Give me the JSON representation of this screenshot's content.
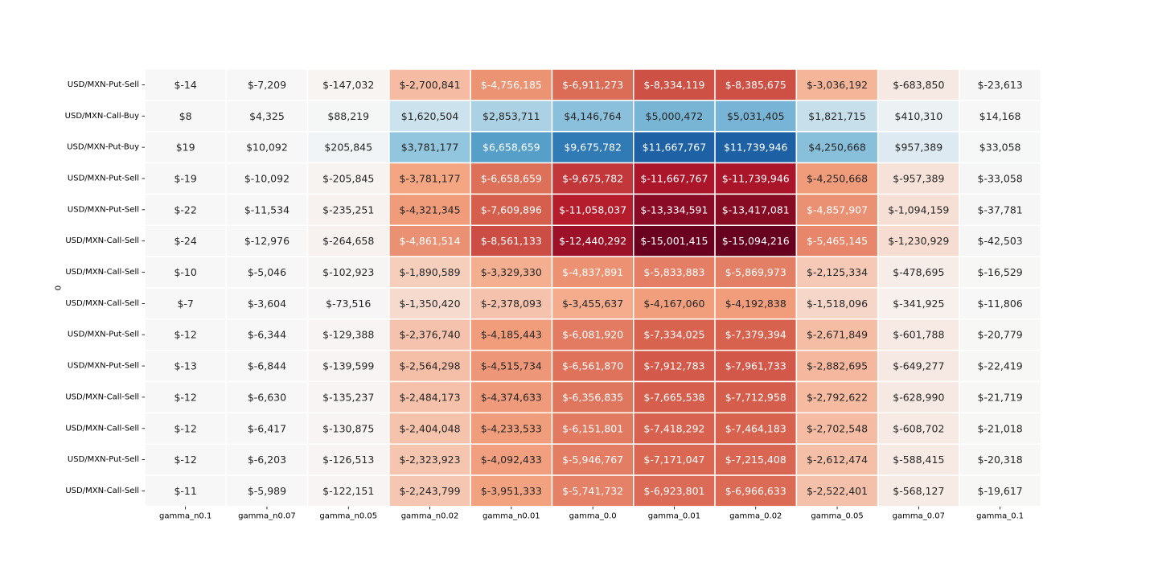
{
  "chart_data": {
    "type": "heatmap",
    "title": "",
    "xlabel": "",
    "ylabel": "0",
    "colormap": "RdBu",
    "color_range": [
      -15094216,
      15094216
    ],
    "columns": [
      "gamma_n0.1",
      "gamma_n0.07",
      "gamma_n0.05",
      "gamma_n0.02",
      "gamma_n0.01",
      "gamma_0.0",
      "gamma_0.01",
      "gamma_0.02",
      "gamma_0.05",
      "gamma_0.07",
      "gamma_0.1"
    ],
    "rows": [
      "USD/MXN-Put-Sell",
      "USD/MXN-Call-Buy",
      "USD/MXN-Put-Buy",
      "USD/MXN-Put-Sell",
      "USD/MXN-Put-Sell",
      "USD/MXN-Call-Sell",
      "USD/MXN-Call-Sell",
      "USD/MXN-Call-Sell",
      "USD/MXN-Put-Sell",
      "USD/MXN-Put-Sell",
      "USD/MXN-Call-Sell",
      "USD/MXN-Call-Sell",
      "USD/MXN-Put-Sell",
      "USD/MXN-Call-Sell"
    ],
    "values": [
      [
        -14,
        -7209,
        -147032,
        -2700841,
        -4756185,
        -6911273,
        -8334119,
        -8385675,
        -3036192,
        -683850,
        -23613
      ],
      [
        8,
        4325,
        88219,
        1620504,
        2853711,
        4146764,
        5000472,
        5031405,
        1821715,
        410310,
        14168
      ],
      [
        19,
        10092,
        205845,
        3781177,
        6658659,
        9675782,
        11667767,
        11739946,
        4250668,
        957389,
        33058
      ],
      [
        -19,
        -10092,
        -205845,
        -3781177,
        -6658659,
        -9675782,
        -11667767,
        -11739946,
        -4250668,
        -957389,
        -33058
      ],
      [
        -22,
        -11534,
        -235251,
        -4321345,
        -7609896,
        -11058037,
        -13334591,
        -13417081,
        -4857907,
        -1094159,
        -37781
      ],
      [
        -24,
        -12976,
        -264658,
        -4861514,
        -8561133,
        -12440292,
        -15001415,
        -15094216,
        -5465145,
        -1230929,
        -42503
      ],
      [
        -10,
        -5046,
        -102923,
        -1890589,
        -3329330,
        -4837891,
        -5833883,
        -5869973,
        -2125334,
        -478695,
        -16529
      ],
      [
        -7,
        -3604,
        -73516,
        -1350420,
        -2378093,
        -3455637,
        -4167060,
        -4192838,
        -1518096,
        -341925,
        -11806
      ],
      [
        -12,
        -6344,
        -129388,
        -2376740,
        -4185443,
        -6081920,
        -7334025,
        -7379394,
        -2671849,
        -601788,
        -20779
      ],
      [
        -13,
        -6844,
        -139599,
        -2564298,
        -4515734,
        -6561870,
        -7912783,
        -7961733,
        -2882695,
        -649277,
        -22419
      ],
      [
        -12,
        -6630,
        -135237,
        -2484173,
        -4374633,
        -6356835,
        -7665538,
        -7712958,
        -2792622,
        -628990,
        -21719
      ],
      [
        -12,
        -6417,
        -130875,
        -2404048,
        -4233533,
        -6151801,
        -7418292,
        -7464183,
        -2702548,
        -608702,
        -21018
      ],
      [
        -12,
        -6203,
        -126513,
        -2323923,
        -4092433,
        -5946767,
        -7171047,
        -7215408,
        -2612474,
        -588415,
        -20318
      ],
      [
        -11,
        -5989,
        -122151,
        -2243799,
        -3951333,
        -5741732,
        -6923801,
        -6966633,
        -2522401,
        -568127,
        -19617
      ]
    ],
    "cell_labels": [
      [
        "$-14",
        "$-7,209",
        "$-147,032",
        "$-2,700,841",
        "$-4,756,185",
        "$-6,911,273",
        "$-8,334,119",
        "$-8,385,675",
        "$-3,036,192",
        "$-683,850",
        "$-23,613"
      ],
      [
        "$8",
        "$4,325",
        "$88,219",
        "$1,620,504",
        "$2,853,711",
        "$4,146,764",
        "$5,000,472",
        "$5,031,405",
        "$1,821,715",
        "$410,310",
        "$14,168"
      ],
      [
        "$19",
        "$10,092",
        "$205,845",
        "$3,781,177",
        "$6,658,659",
        "$9,675,782",
        "$11,667,767",
        "$11,739,946",
        "$4,250,668",
        "$957,389",
        "$33,058"
      ],
      [
        "$-19",
        "$-10,092",
        "$-205,845",
        "$-3,781,177",
        "$-6,658,659",
        "$-9,675,782",
        "$-11,667,767",
        "$-11,739,946",
        "$-4,250,668",
        "$-957,389",
        "$-33,058"
      ],
      [
        "$-22",
        "$-11,534",
        "$-235,251",
        "$-4,321,345",
        "$-7,609,896",
        "$-11,058,037",
        "$-13,334,591",
        "$-13,417,081",
        "$-4,857,907",
        "$-1,094,159",
        "$-37,781"
      ],
      [
        "$-24",
        "$-12,976",
        "$-264,658",
        "$-4,861,514",
        "$-8,561,133",
        "$-12,440,292",
        "$-15,001,415",
        "$-15,094,216",
        "$-5,465,145",
        "$-1,230,929",
        "$-42,503"
      ],
      [
        "$-10",
        "$-5,046",
        "$-102,923",
        "$-1,890,589",
        "$-3,329,330",
        "$-4,837,891",
        "$-5,833,883",
        "$-5,869,973",
        "$-2,125,334",
        "$-478,695",
        "$-16,529"
      ],
      [
        "$-7",
        "$-3,604",
        "$-73,516",
        "$-1,350,420",
        "$-2,378,093",
        "$-3,455,637",
        "$-4,167,060",
        "$-4,192,838",
        "$-1,518,096",
        "$-341,925",
        "$-11,806"
      ],
      [
        "$-12",
        "$-6,344",
        "$-129,388",
        "$-2,376,740",
        "$-4,185,443",
        "$-6,081,920",
        "$-7,334,025",
        "$-7,379,394",
        "$-2,671,849",
        "$-601,788",
        "$-20,779"
      ],
      [
        "$-13",
        "$-6,844",
        "$-139,599",
        "$-2,564,298",
        "$-4,515,734",
        "$-6,561,870",
        "$-7,912,783",
        "$-7,961,733",
        "$-2,882,695",
        "$-649,277",
        "$-22,419"
      ],
      [
        "$-12",
        "$-6,630",
        "$-135,237",
        "$-2,484,173",
        "$-4,374,633",
        "$-6,356,835",
        "$-7,665,538",
        "$-7,712,958",
        "$-2,792,622",
        "$-628,990",
        "$-21,719"
      ],
      [
        "$-12",
        "$-6,417",
        "$-130,875",
        "$-2,404,048",
        "$-4,233,533",
        "$-6,151,801",
        "$-7,418,292",
        "$-7,464,183",
        "$-2,702,548",
        "$-608,702",
        "$-21,018"
      ],
      [
        "$-12",
        "$-6,203",
        "$-126,513",
        "$-2,323,923",
        "$-4,092,433",
        "$-5,946,767",
        "$-7,171,047",
        "$-7,215,408",
        "$-2,612,474",
        "$-588,415",
        "$-20,318"
      ],
      [
        "$-11",
        "$-5,989",
        "$-122,151",
        "$-2,243,799",
        "$-3,951,333",
        "$-5,741,732",
        "$-6,923,801",
        "$-6,966,633",
        "$-2,522,401",
        "$-568,127",
        "$-19,617"
      ]
    ]
  }
}
